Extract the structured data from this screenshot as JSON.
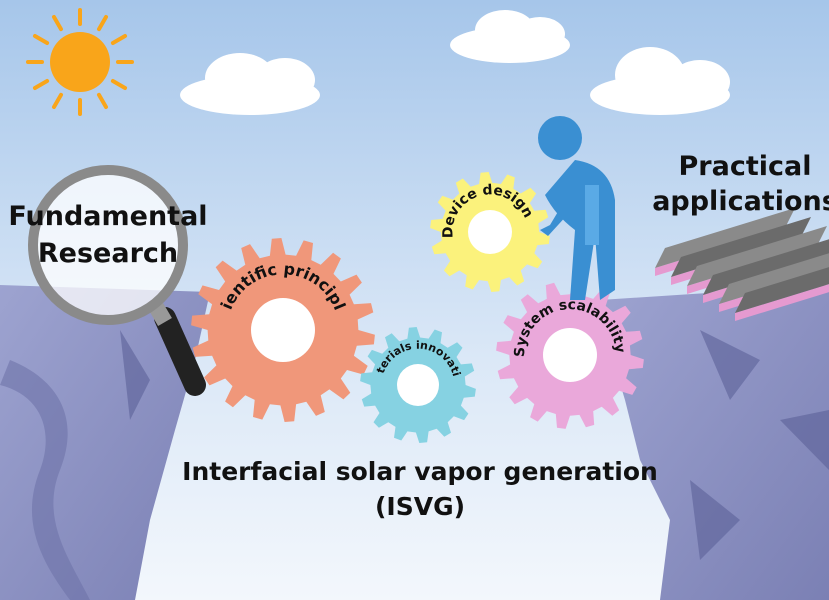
{
  "left_label": {
    "lines": [
      "Fundamental",
      "Research"
    ]
  },
  "right_label": {
    "lines": [
      "Practical",
      "applications"
    ]
  },
  "gears": [
    {
      "label": "Scientific principles"
    },
    {
      "label": "Materials innovation"
    },
    {
      "label": "Device design"
    },
    {
      "label": "System scalability"
    }
  ],
  "title": {
    "lines": [
      "Interfacial  solar vapor generation",
      "(ISVG)"
    ]
  }
}
